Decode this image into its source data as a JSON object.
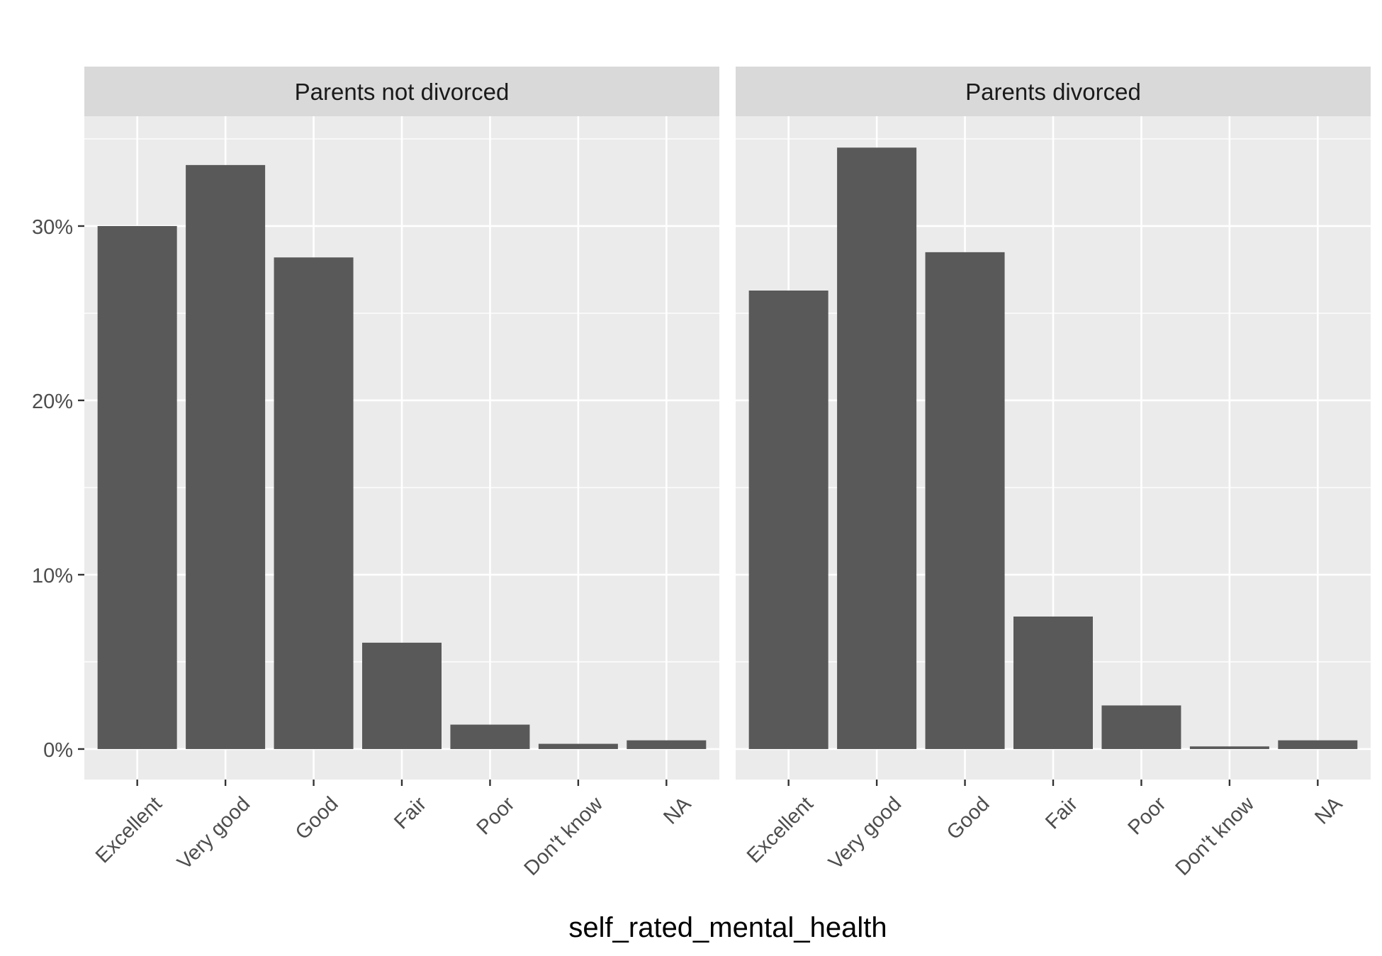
{
  "chart_data": {
    "type": "bar",
    "xlabel": "self_rated_mental_health",
    "ylabel": "",
    "categories": [
      "Excellent",
      "Very good",
      "Good",
      "Fair",
      "Poor",
      "Don't know",
      "NA"
    ],
    "ylim": [
      -1.75,
      36.3
    ],
    "yticks": [
      0,
      10,
      20,
      30
    ],
    "ytick_labels": [
      "0%",
      "10%",
      "20%",
      "30%"
    ],
    "grid": true,
    "panels": [
      {
        "name": "Parents not divorced",
        "values": [
          30.0,
          33.5,
          28.2,
          6.1,
          1.4,
          0.3,
          0.5
        ]
      },
      {
        "name": "Parents divorced",
        "values": [
          26.3,
          34.5,
          28.5,
          7.6,
          2.5,
          0.15,
          0.5
        ]
      }
    ],
    "colors": {
      "bar": "#595959",
      "panel_bg": "#ebebeb",
      "strip_bg": "#d9d9d9",
      "grid": "#ffffff",
      "tick": "#333333"
    }
  }
}
